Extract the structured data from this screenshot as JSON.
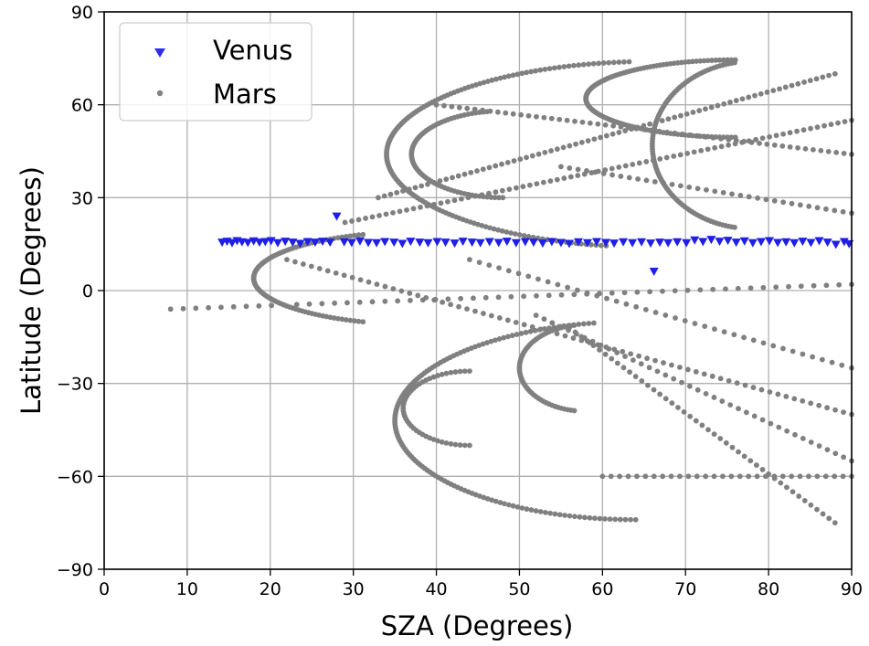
{
  "chart_data": {
    "type": "scatter",
    "title": "",
    "xlabel": "SZA (Degrees)",
    "ylabel": "Latitude (Degrees)",
    "xlim": [
      0,
      90
    ],
    "ylim": [
      -90,
      90
    ],
    "xticks": [
      "0",
      "10",
      "20",
      "30",
      "40",
      "50",
      "60",
      "70",
      "80",
      "90"
    ],
    "yticks": [
      "90",
      "60",
      "30",
      "0",
      "−30",
      "−60",
      "−90"
    ],
    "grid": true,
    "legend": {
      "position": "top-left"
    },
    "series": [
      {
        "name": "Venus",
        "marker": "triangle-down",
        "color": "#1f1fe8",
        "description_points": [
          [
            14.2,
            15.6
          ],
          [
            14.8,
            15.9
          ],
          [
            15.4,
            15.4
          ],
          [
            16.0,
            16.1
          ],
          [
            16.6,
            15.7
          ],
          [
            17.3,
            15.5
          ],
          [
            18.0,
            16.0
          ],
          [
            18.7,
            15.6
          ],
          [
            19.4,
            15.8
          ],
          [
            20.1,
            16.1
          ],
          [
            20.9,
            15.4
          ],
          [
            21.8,
            15.9
          ],
          [
            22.7,
            15.6
          ],
          [
            23.6,
            15.2
          ],
          [
            24.5,
            15.8
          ],
          [
            25.4,
            15.6
          ],
          [
            26.3,
            15.9
          ],
          [
            27.2,
            15.6
          ],
          [
            28.0,
            24.0
          ],
          [
            28.9,
            15.7
          ],
          [
            29.8,
            15.5
          ],
          [
            30.8,
            16.0
          ],
          [
            31.8,
            15.5
          ],
          [
            32.8,
            15.4
          ],
          [
            33.8,
            15.8
          ],
          [
            34.9,
            15.6
          ],
          [
            35.9,
            15.2
          ],
          [
            36.9,
            15.9
          ],
          [
            38.0,
            15.6
          ],
          [
            39.0,
            15.4
          ],
          [
            40.1,
            15.8
          ],
          [
            41.1,
            15.6
          ],
          [
            42.2,
            15.3
          ],
          [
            43.2,
            15.9
          ],
          [
            44.3,
            15.6
          ],
          [
            45.3,
            15.4
          ],
          [
            46.4,
            15.8
          ],
          [
            47.5,
            15.5
          ],
          [
            48.5,
            15.9
          ],
          [
            49.6,
            15.4
          ],
          [
            50.7,
            15.8
          ],
          [
            51.7,
            15.6
          ],
          [
            52.8,
            15.3
          ],
          [
            53.9,
            15.8
          ],
          [
            55.0,
            15.5
          ],
          [
            56.0,
            15.2
          ],
          [
            57.1,
            15.7
          ],
          [
            58.2,
            15.4
          ],
          [
            59.3,
            15.8
          ],
          [
            60.4,
            15.5
          ],
          [
            61.4,
            15.3
          ],
          [
            62.5,
            15.7
          ],
          [
            63.6,
            15.4
          ],
          [
            64.7,
            15.7
          ],
          [
            65.8,
            15.3
          ],
          [
            66.2,
            6.2
          ],
          [
            66.9,
            15.6
          ],
          [
            67.9,
            15.4
          ],
          [
            69.0,
            15.7
          ],
          [
            70.1,
            15.4
          ],
          [
            71.1,
            16.3
          ],
          [
            72.1,
            15.8
          ],
          [
            73.1,
            16.5
          ],
          [
            74.1,
            15.9
          ],
          [
            75.1,
            16.2
          ],
          [
            76.1,
            15.6
          ],
          [
            77.1,
            16.0
          ],
          [
            78.1,
            15.4
          ],
          [
            79.1,
            15.8
          ],
          [
            80.1,
            16.1
          ],
          [
            81.1,
            15.5
          ],
          [
            82.1,
            15.7
          ],
          [
            83.1,
            15.4
          ],
          [
            84.1,
            15.9
          ],
          [
            85.1,
            15.5
          ],
          [
            86.1,
            16.1
          ],
          [
            87.1,
            15.6
          ],
          [
            88.1,
            14.9
          ],
          [
            89.1,
            15.8
          ],
          [
            89.7,
            15.1
          ]
        ]
      },
      {
        "name": "Mars",
        "marker": "circle",
        "color": "#808080",
        "point_clusters": [
          {
            "type": "arc",
            "cx": 38.0,
            "cy": 4.0,
            "rx": 20.0,
            "ry": 15.0,
            "from": 110,
            "to": 250,
            "n": 90
          },
          {
            "type": "arc",
            "cx": 66.0,
            "cy": 44.0,
            "rx": 32.0,
            "ry": 30.0,
            "from": 95,
            "to": 260,
            "n": 150
          },
          {
            "type": "arc",
            "cx": 64.0,
            "cy": -42.0,
            "rx": 29.0,
            "ry": 32.0,
            "from": 100,
            "to": 270,
            "n": 140
          },
          {
            "type": "arc",
            "cx": 76.0,
            "cy": 62.0,
            "rx": 18.0,
            "ry": 12.5,
            "from": 90,
            "to": 270,
            "n": 120
          },
          {
            "type": "arc",
            "cx": 78.0,
            "cy": 47.0,
            "rx": 12.0,
            "ry": 27.0,
            "from": 100,
            "to": 260,
            "n": 90
          },
          {
            "type": "arc",
            "cx": 48.0,
            "cy": 44.0,
            "rx": 11.0,
            "ry": 14.0,
            "from": 100,
            "to": 270,
            "n": 70
          },
          {
            "type": "arc",
            "cx": 44.0,
            "cy": -38.0,
            "rx": 8.0,
            "ry": 12.0,
            "from": 90,
            "to": 270,
            "n": 45
          },
          {
            "type": "arc",
            "cx": 58.0,
            "cy": -25.0,
            "rx": 8.0,
            "ry": 14.0,
            "from": 100,
            "to": 260,
            "n": 55
          },
          {
            "type": "line",
            "x0": 8.0,
            "y0": -6.0,
            "x1": 90.0,
            "y1": 2.0,
            "n": 55
          },
          {
            "type": "line",
            "x0": 22.0,
            "y0": 10.0,
            "x1": 90.0,
            "y1": -40.0,
            "n": 70
          },
          {
            "type": "line",
            "x0": 29.0,
            "y0": 22.0,
            "x1": 90.0,
            "y1": 55.0,
            "n": 75
          },
          {
            "type": "line",
            "x0": 33.0,
            "y0": 30.0,
            "x1": 88.0,
            "y1": 70.0,
            "n": 75
          },
          {
            "type": "line",
            "x0": 40.0,
            "y0": 60.0,
            "x1": 90.0,
            "y1": 44.0,
            "n": 55
          },
          {
            "type": "line",
            "x0": 52.0,
            "y0": -8.0,
            "x1": 90.0,
            "y1": -55.0,
            "n": 40
          },
          {
            "type": "line",
            "x0": 56.0,
            "y0": -12.0,
            "x1": 88.0,
            "y1": -75.0,
            "n": 45
          },
          {
            "type": "line",
            "x0": 55.0,
            "y0": 40.0,
            "x1": 90.0,
            "y1": 25.0,
            "n": 35
          },
          {
            "type": "line",
            "x0": 44.0,
            "y0": 10.0,
            "x1": 90.0,
            "y1": -25.0,
            "n": 40
          },
          {
            "type": "line",
            "x0": 60.0,
            "y0": -60.0,
            "x1": 90.0,
            "y1": -60.0,
            "n": 30
          }
        ]
      }
    ]
  }
}
